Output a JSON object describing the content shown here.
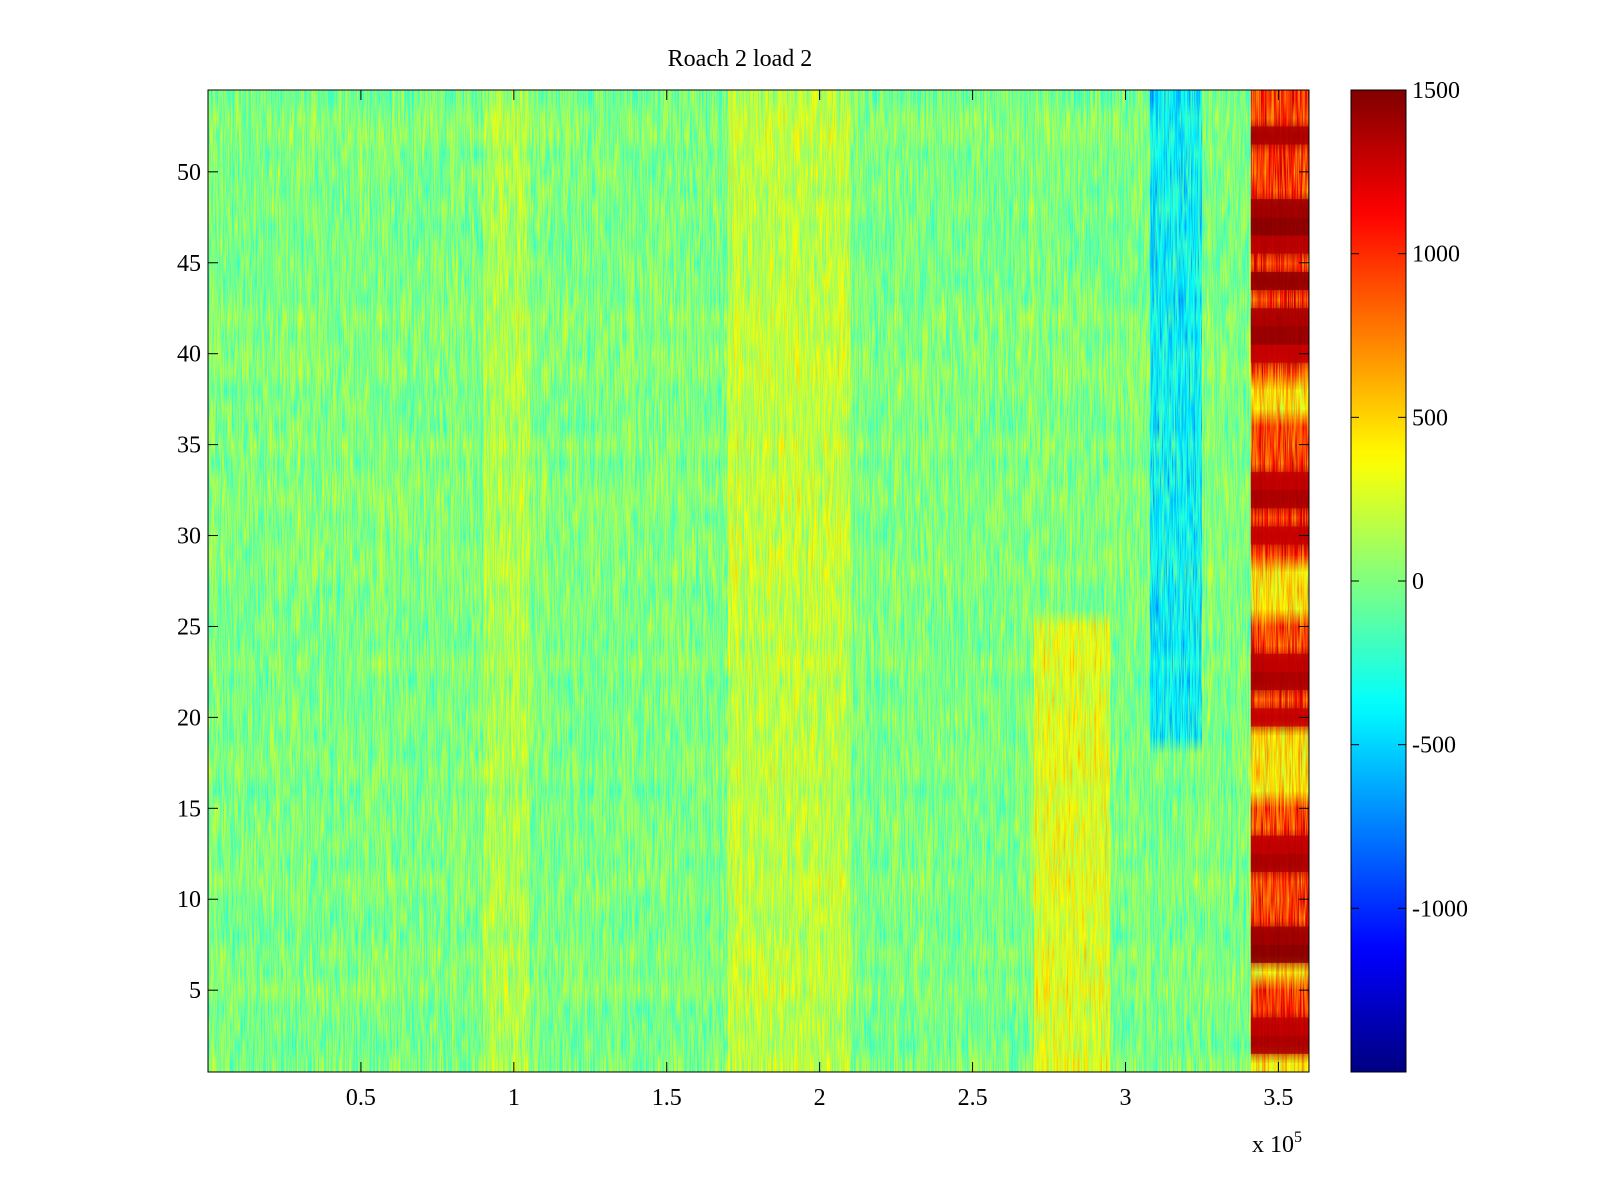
{
  "chart_data": {
    "type": "heatmap",
    "title": "Roach 2 load 2",
    "xlabel": "",
    "ylabel": "",
    "x_range": [
      0,
      360000
    ],
    "y_range": [
      0.5,
      54.5
    ],
    "rows": 54,
    "columns": 1440,
    "x_ticks": [
      {
        "value": 50000,
        "label": "0.5"
      },
      {
        "value": 100000,
        "label": "1"
      },
      {
        "value": 150000,
        "label": "1.5"
      },
      {
        "value": 200000,
        "label": "2"
      },
      {
        "value": 250000,
        "label": "2.5"
      },
      {
        "value": 300000,
        "label": "3"
      },
      {
        "value": 350000,
        "label": "3.5"
      }
    ],
    "x_multiplier": {
      "base": "x 10",
      "exponent": "5"
    },
    "y_ticks": [
      {
        "value": 5,
        "label": "5"
      },
      {
        "value": 10,
        "label": "10"
      },
      {
        "value": 15,
        "label": "15"
      },
      {
        "value": 20,
        "label": "20"
      },
      {
        "value": 25,
        "label": "25"
      },
      {
        "value": 30,
        "label": "30"
      },
      {
        "value": 35,
        "label": "35"
      },
      {
        "value": 40,
        "label": "40"
      },
      {
        "value": 45,
        "label": "45"
      },
      {
        "value": 50,
        "label": "50"
      }
    ],
    "colorbar": {
      "colormap": "jet",
      "clim": [
        -1500,
        1500
      ],
      "ticks": [
        {
          "value": 1500,
          "label": "1500"
        },
        {
          "value": 1000,
          "label": "1000"
        },
        {
          "value": 500,
          "label": "500"
        },
        {
          "value": 0,
          "label": "0"
        },
        {
          "value": -500,
          "label": "-500"
        },
        {
          "value": -1000,
          "label": "-1000"
        }
      ]
    },
    "features": {
      "baseline_mean": 0,
      "noise_amplitude": 250,
      "positive_bands": [
        {
          "x_from": 90000,
          "x_to": 105000,
          "mean": 150
        },
        {
          "x_from": 170000,
          "x_to": 210000,
          "mean": 200
        },
        {
          "x_from": 270000,
          "x_to": 295000,
          "mean": 300,
          "rows": [
            1,
            25
          ]
        }
      ],
      "negative_band": {
        "x_from": 308000,
        "x_to": 325000,
        "mean": -500,
        "rows": [
          19,
          54
        ]
      },
      "saturated_region": {
        "x_from": 341000,
        "x_to": 360000,
        "rows_max": [
          2,
          3,
          7,
          8,
          12,
          13,
          20,
          22,
          23,
          30,
          32,
          33,
          40,
          41,
          42,
          44,
          46,
          47,
          48,
          52
        ],
        "rows_mid": [
          4,
          5,
          9,
          10,
          11,
          14,
          15,
          21,
          24,
          25,
          29,
          31,
          34,
          35,
          36,
          39,
          43,
          45,
          49,
          50,
          51,
          53,
          54
        ],
        "rows_low": [
          1,
          6,
          16,
          17,
          18,
          19,
          26,
          27,
          28,
          37,
          38
        ]
      }
    }
  }
}
